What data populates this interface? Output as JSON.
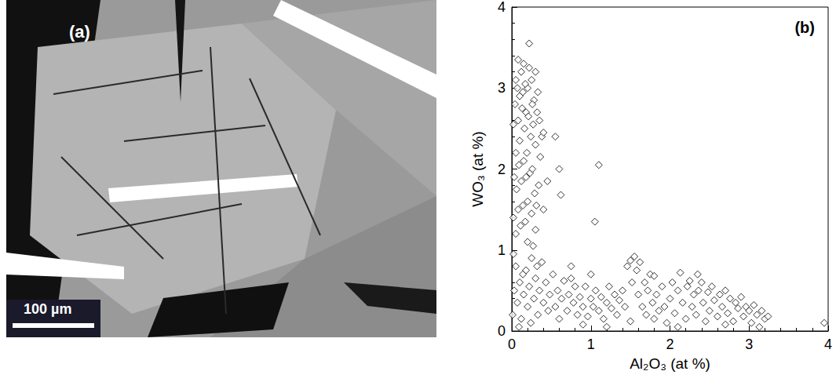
{
  "micrograph": {
    "label": "(a)",
    "scale_bar": "100 µm"
  },
  "chart_data": {
    "type": "scatter",
    "title": "(b)",
    "x_label": "Al₂O₃ (at %)",
    "y_label": "WO₃ (at %)",
    "xlim": [
      0,
      4
    ],
    "xticks": [
      0,
      1,
      2,
      3,
      4
    ],
    "ylim": [
      0,
      4
    ],
    "yticks": [
      0,
      1,
      2,
      3,
      4
    ],
    "grid": false,
    "marker": "diamond",
    "color": "#000000",
    "x": [
      0.02,
      0.05,
      0.08,
      0.1,
      0.12,
      0.15,
      0.18,
      0.2,
      0.22,
      0.25,
      0.28,
      0.3,
      0.33,
      0.35,
      0.38,
      0.4,
      0.22,
      0.05,
      0.08,
      0.1,
      0.13,
      0.16,
      0.19,
      0.21,
      0.24,
      0.27,
      0.3,
      0.32,
      0.36,
      0.03,
      0.06,
      0.09,
      0.12,
      0.15,
      0.18,
      0.2,
      0.23,
      0.26,
      0.29,
      0.31,
      0.34,
      0.02,
      0.05,
      0.08,
      0.11,
      0.14,
      0.17,
      0.2,
      0.25,
      0.3,
      0.27,
      0.04,
      0.14,
      0.26,
      0.17,
      0.07,
      0.55,
      0.6,
      0.62,
      1.1,
      1.05,
      0.4,
      0.45,
      0.01,
      0.03,
      0.05,
      0.07,
      0.1,
      0.12,
      0.15,
      0.18,
      0.2,
      0.22,
      0.25,
      0.28,
      0.3,
      0.33,
      0.35,
      0.38,
      0.4,
      0.43,
      0.46,
      0.48,
      0.02,
      0.09,
      0.14,
      0.24,
      0.32,
      0.52,
      0.55,
      0.58,
      0.6,
      0.63,
      0.66,
      0.7,
      0.72,
      0.75,
      0.78,
      0.8,
      0.83,
      0.86,
      0.9,
      0.93,
      0.96,
      1.0,
      1.03,
      1.06,
      1.1,
      1.13,
      1.16,
      1.2,
      1.23,
      1.26,
      1.3,
      1.33,
      1.36,
      1.4,
      1.43,
      1.46,
      1.5,
      1.52,
      1.55,
      1.58,
      1.6,
      1.62,
      1.65,
      1.68,
      1.7,
      1.72,
      1.75,
      1.78,
      1.8,
      1.83,
      1.86,
      1.9,
      1.93,
      1.96,
      2.0,
      2.03,
      2.06,
      2.1,
      2.13,
      2.16,
      2.2,
      2.22,
      2.25,
      2.28,
      2.3,
      2.33,
      2.36,
      2.4,
      2.42,
      2.45,
      2.48,
      2.5,
      2.53,
      2.56,
      2.6,
      2.63,
      2.66,
      2.7,
      2.73,
      2.76,
      2.8,
      2.83,
      2.86,
      2.9,
      2.93,
      2.96,
      3.0,
      3.03,
      3.06,
      3.1,
      3.13,
      3.16,
      3.2,
      3.24,
      3.95,
      1.2,
      0.9,
      1.5,
      2.1,
      2.7,
      0.75,
      1.0,
      1.8,
      2.35
    ],
    "values": [
      2.55,
      3.1,
      3.35,
      2.9,
      3.2,
      3.3,
      2.7,
      3.0,
      3.25,
      3.1,
      2.85,
      3.2,
      2.95,
      2.6,
      2.4,
      2.45,
      3.55,
      2.2,
      2.6,
      2.35,
      2.75,
      2.5,
      2.2,
      2.65,
      2.4,
      2.55,
      2.3,
      2.7,
      2.15,
      1.9,
      1.75,
      2.05,
      1.85,
      2.1,
      1.9,
      1.6,
      1.95,
      2.0,
      1.7,
      1.55,
      1.8,
      1.4,
      1.2,
      1.5,
      1.3,
      1.55,
      1.35,
      1.1,
      1.45,
      1.25,
      1.05,
      2.8,
      2.95,
      2.8,
      3.05,
      3.0,
      2.4,
      2.0,
      1.68,
      2.05,
      1.35,
      1.5,
      1.85,
      0.2,
      0.5,
      0.8,
      0.35,
      0.6,
      0.15,
      0.45,
      0.75,
      0.3,
      0.55,
      0.9,
      0.4,
      0.65,
      0.2,
      0.5,
      0.85,
      0.35,
      0.6,
      0.25,
      0.45,
      0.95,
      0.05,
      0.7,
      0.1,
      0.8,
      0.7,
      0.3,
      0.5,
      0.15,
      0.4,
      0.62,
      0.25,
      0.45,
      0.8,
      0.35,
      0.55,
      0.2,
      0.42,
      0.3,
      0.55,
      0.18,
      0.4,
      0.3,
      0.5,
      0.25,
      0.42,
      0.15,
      0.35,
      0.55,
      0.28,
      0.45,
      0.2,
      0.38,
      0.5,
      0.3,
      0.8,
      0.87,
      0.6,
      0.92,
      0.75,
      0.45,
      0.85,
      0.3,
      0.6,
      0.2,
      0.5,
      0.7,
      0.35,
      0.15,
      0.45,
      0.25,
      0.55,
      0.3,
      0.1,
      0.4,
      0.6,
      0.22,
      0.5,
      0.72,
      0.35,
      0.15,
      0.55,
      0.62,
      0.3,
      0.45,
      0.2,
      0.5,
      0.6,
      0.35,
      0.12,
      0.48,
      0.25,
      0.55,
      0.38,
      0.18,
      0.45,
      0.3,
      0.5,
      0.22,
      0.4,
      0.12,
      0.35,
      0.28,
      0.42,
      0.18,
      0.3,
      0.25,
      0.1,
      0.32,
      0.2,
      0.05,
      0.25,
      0.15,
      0.18,
      0.1,
      0.05,
      0.08,
      0.12,
      0.05,
      0.08,
      0.65,
      0.7,
      0.68,
      0.7
    ]
  }
}
